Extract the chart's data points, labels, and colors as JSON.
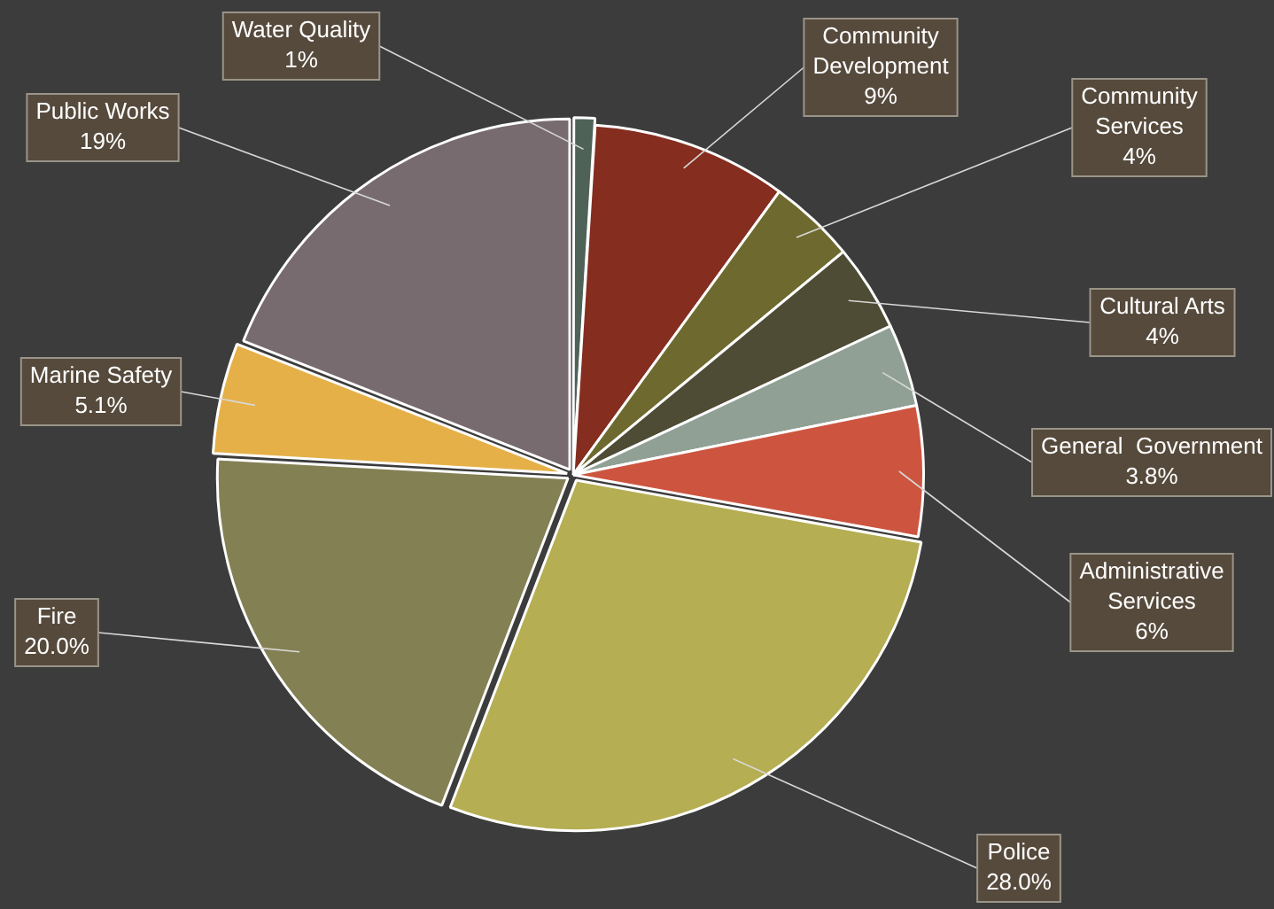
{
  "chart_data": {
    "type": "pie",
    "categories": [
      "Water Quality",
      "Community Development",
      "Community Services",
      "Cultural Arts",
      "General  Government",
      "Administrative Services",
      "Police",
      "Fire",
      "Marine Safety",
      "Public Works"
    ],
    "values": [
      1,
      9,
      4,
      4,
      3.8,
      6,
      28.0,
      20.0,
      5.1,
      19
    ],
    "value_labels": [
      "1%",
      "9%",
      "4%",
      "4%",
      "3.8%",
      "6%",
      "28.0%",
      "20.0%",
      "5.1%",
      "19%"
    ],
    "colors": [
      "#4f6258",
      "#852d1f",
      "#6e6a2f",
      "#4e4c35",
      "#90a095",
      "#cd5540",
      "#b5ae52",
      "#838054",
      "#e6b049",
      "#786b70"
    ],
    "legend": false
  }
}
